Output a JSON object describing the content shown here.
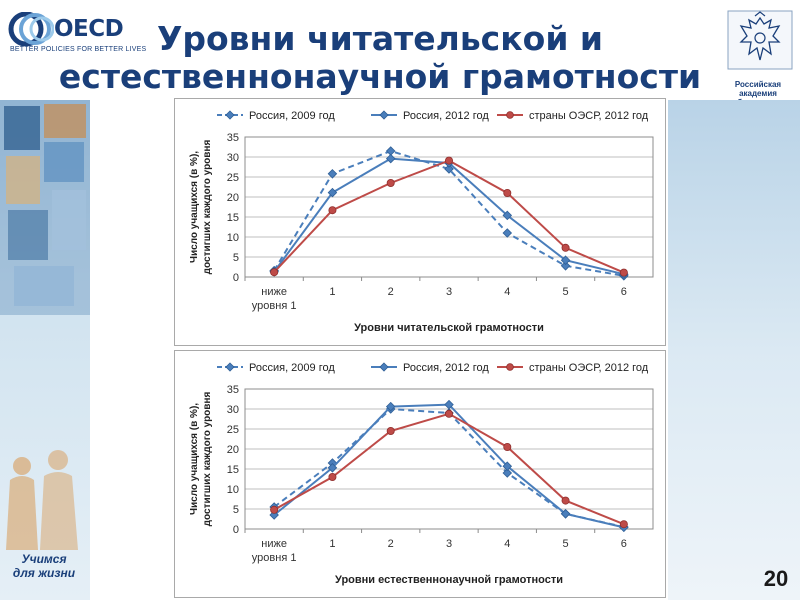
{
  "header": {
    "logo_text": "OECD",
    "logo_tagline": "BETTER POLICIES FOR BETTER LIVES",
    "title_line1": "Уровни читательской и",
    "title_line2": "естественнонаучной грамотности",
    "emblem_caption": "Российская академия образования"
  },
  "footer": {
    "slogan_line1": "Учимся",
    "slogan_line2": "для жизни",
    "page_number": "20"
  },
  "colors": {
    "brand": "#1a3f7a",
    "russia": "#4a7ebb",
    "oecd": "#be4b48"
  },
  "chart_data": [
    {
      "type": "line",
      "title": "",
      "xlabel": "Уровни читательской грамотности",
      "ylabel": "Число учащихся (в %), достигших каждого уровня",
      "categories": [
        "ниже уровня 1",
        "1",
        "2",
        "3",
        "4",
        "5",
        "6"
      ],
      "ylim": [
        0,
        35
      ],
      "yticks": [
        0,
        5,
        10,
        15,
        20,
        25,
        30,
        35
      ],
      "grid": true,
      "legend_position": "top",
      "series": [
        {
          "name": "Россия, 2009 год",
          "style": "dashed",
          "color": "#4a7ebb",
          "marker": "diamond",
          "values": [
            1.6,
            25.8,
            31.5,
            27.0,
            11.0,
            2.8,
            0.3
          ]
        },
        {
          "name": "Россия, 2012 год",
          "style": "solid",
          "color": "#4a7ebb",
          "marker": "diamond",
          "values": [
            1.3,
            21.1,
            29.6,
            28.5,
            15.4,
            4.2,
            0.7
          ]
        },
        {
          "name": "страны ОЭСР, 2012 год",
          "style": "solid",
          "color": "#be4b48",
          "marker": "circle",
          "values": [
            1.2,
            16.7,
            23.5,
            29.1,
            21.0,
            7.3,
            1.1
          ]
        }
      ]
    },
    {
      "type": "line",
      "title": "",
      "xlabel": "Уровни естественнонаучной грамотности",
      "ylabel": "Число учащихся (в %), достигших каждого уровня",
      "categories": [
        "ниже уровня 1",
        "1",
        "2",
        "3",
        "4",
        "5",
        "6"
      ],
      "ylim": [
        0,
        35
      ],
      "yticks": [
        0,
        5,
        10,
        15,
        20,
        25,
        30,
        35
      ],
      "grid": true,
      "legend_position": "top",
      "series": [
        {
          "name": "Россия, 2009 год",
          "style": "dashed",
          "color": "#4a7ebb",
          "marker": "diamond",
          "values": [
            5.5,
            16.5,
            30.0,
            29.0,
            14.0,
            3.8,
            0.5
          ]
        },
        {
          "name": "Россия, 2012 год",
          "style": "solid",
          "color": "#4a7ebb",
          "marker": "diamond",
          "values": [
            3.5,
            15.3,
            30.6,
            31.1,
            15.7,
            3.8,
            0.4
          ]
        },
        {
          "name": "страны ОЭСР, 2012 год",
          "style": "solid",
          "color": "#be4b48",
          "marker": "circle",
          "values": [
            4.8,
            13.0,
            24.5,
            28.8,
            20.5,
            7.1,
            1.2
          ]
        }
      ]
    }
  ]
}
